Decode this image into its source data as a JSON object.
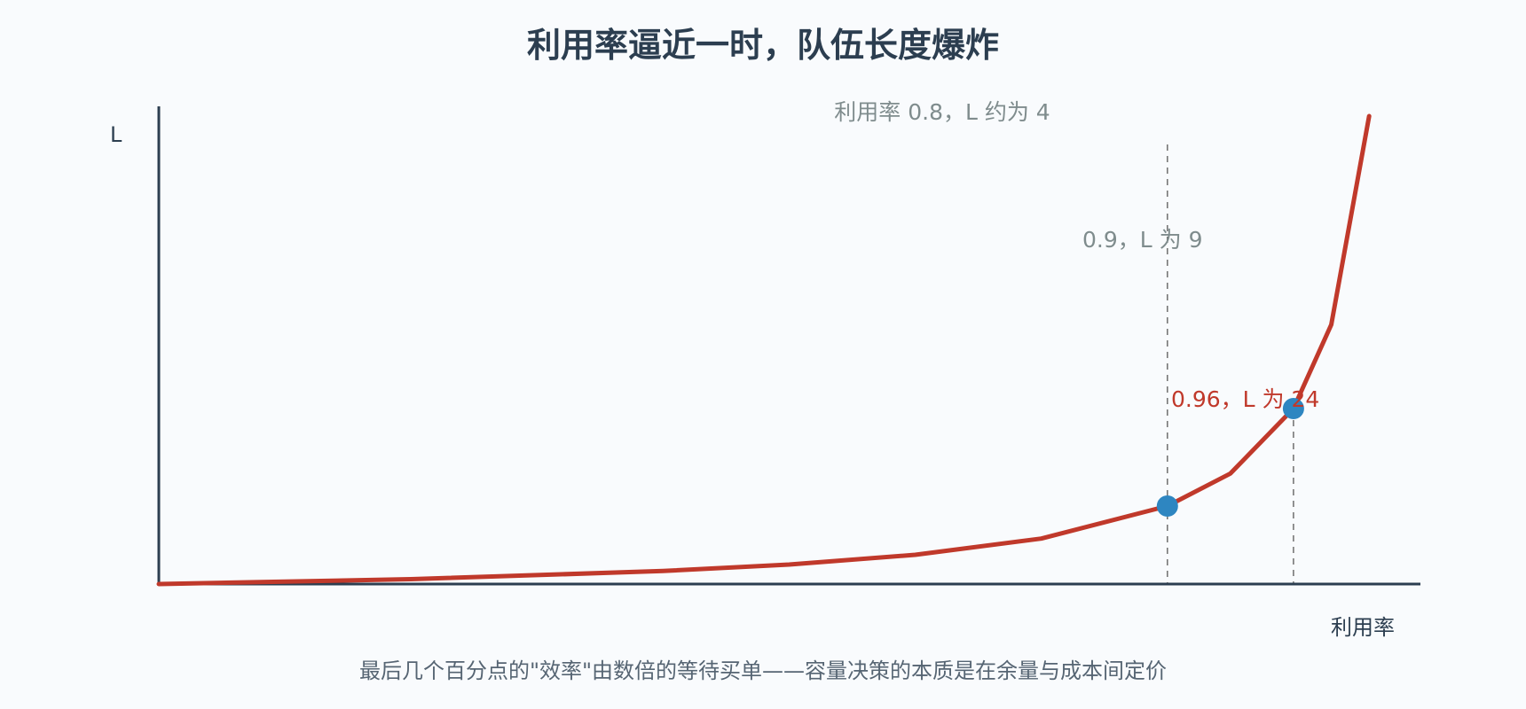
{
  "chart_data": {
    "type": "line",
    "title": "利用率逼近一时，队伍长度爆炸",
    "xlabel": "利用率",
    "ylabel": "L",
    "caption": "最后几个百分点的\"效率\"由数倍的等待买单——容量决策的本质是在余量与成本间定价",
    "xlim": [
      0,
      1
    ],
    "ylim": [
      0,
      24
    ],
    "grid": false,
    "series": [
      {
        "color": "#c0392b",
        "x": [
          0.0,
          0.2,
          0.4,
          0.5,
          0.6,
          0.7,
          0.8,
          0.85,
          0.9,
          0.93,
          0.96
        ],
        "y": [
          0.0,
          0.25,
          0.67,
          1.0,
          1.5,
          2.33,
          4.0,
          5.67,
          9.0,
          13.3,
          24.0
        ]
      }
    ],
    "points": [
      {
        "x": 0.8,
        "y": 4,
        "color": "#2e86c1"
      },
      {
        "x": 0.9,
        "y": 9,
        "color": "#2e86c1"
      }
    ],
    "reference_lines": [
      {
        "x": 0.8
      },
      {
        "x": 0.9
      }
    ],
    "annotations": [
      {
        "text": "利用率 0.8，L 约为 4",
        "color": "#7f8c8d"
      },
      {
        "text": "0.9，L 为 9",
        "color": "#7f8c8d"
      },
      {
        "text": "0.96，L 为 24",
        "color": "#c0392b"
      }
    ],
    "colors": {
      "axis": "#2c3e50",
      "curve": "#c0392b",
      "point": "#2e86c1",
      "reference": "#777777"
    }
  }
}
